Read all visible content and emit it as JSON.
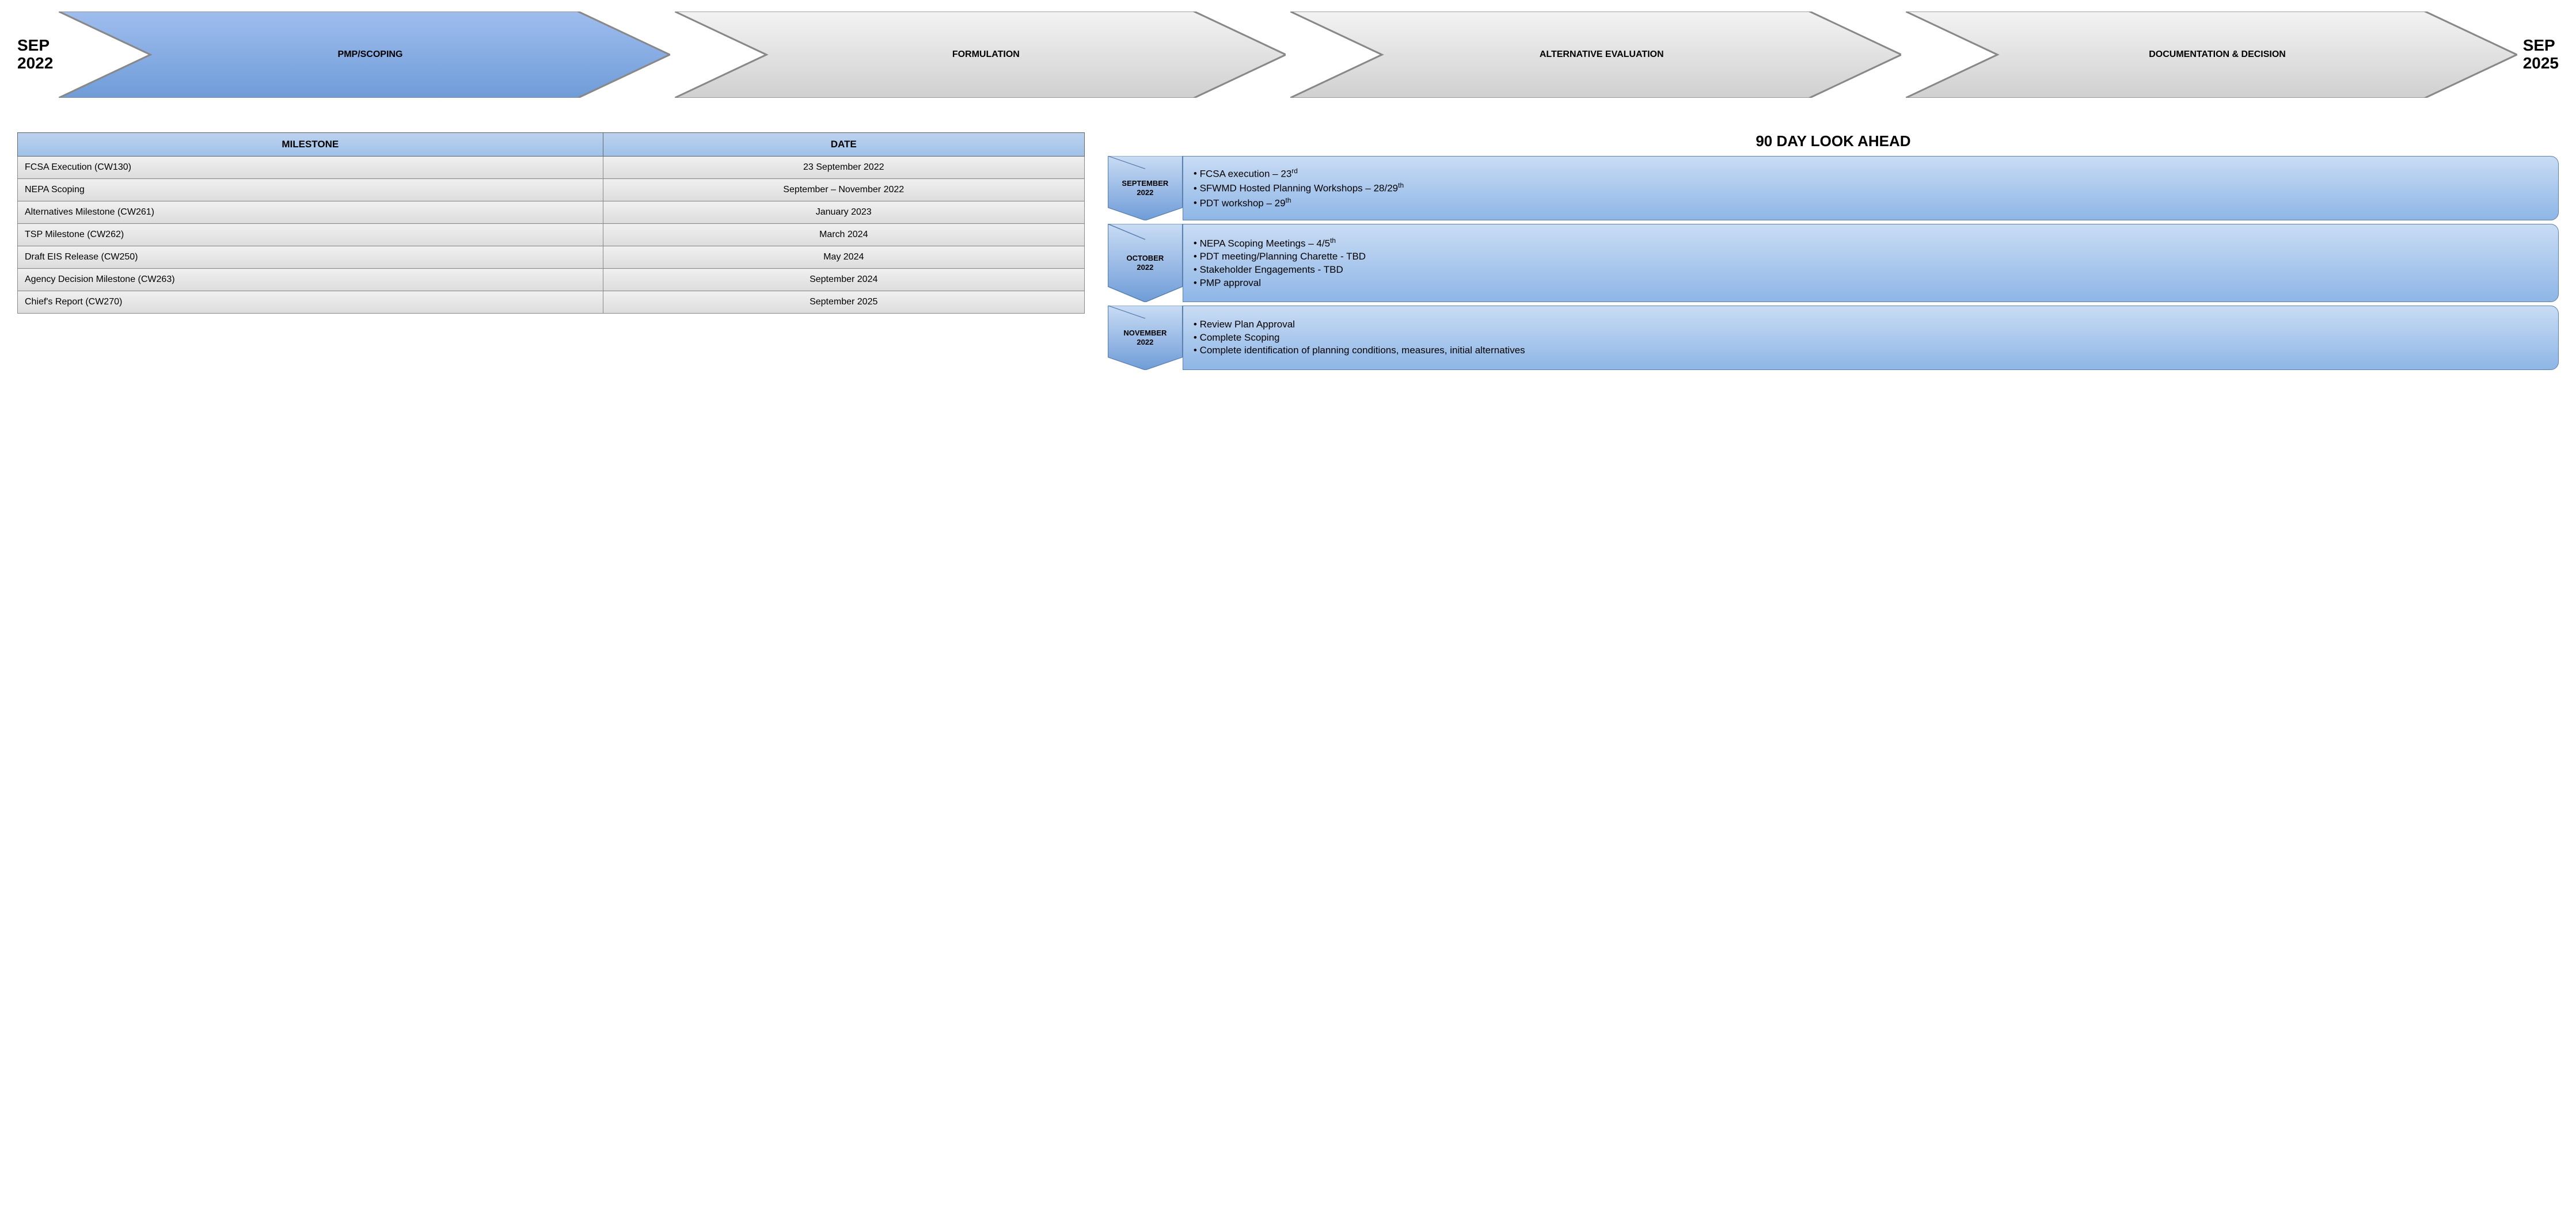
{
  "dates": {
    "start": "SEP\n2022",
    "end": "SEP\n2025"
  },
  "chevrons": {
    "active_fill_a": "#9fbdee",
    "active_fill_b": "#6f9cd8",
    "inactive_fill_a": "#f3f3f3",
    "inactive_fill_b": "#d0d0d0",
    "stroke": "#888888",
    "items": [
      {
        "label": "PMP/SCOPING",
        "active": true
      },
      {
        "label": "FORMULATION",
        "active": false
      },
      {
        "label": "ALTERNATIVE EVALUATION",
        "active": false
      },
      {
        "label": "DOCUMENTATION & DECISION",
        "active": false
      }
    ]
  },
  "table": {
    "headers": [
      "MILESTONE",
      "DATE"
    ],
    "rows": [
      [
        "FCSA Execution (CW130)",
        "23 September 2022"
      ],
      [
        "NEPA Scoping",
        "September – November 2022"
      ],
      [
        "Alternatives Milestone (CW261)",
        "January 2023"
      ],
      [
        "TSP Milestone (CW262)",
        "March 2024"
      ],
      [
        "Draft EIS Release (CW250)",
        "May 2024"
      ],
      [
        "Agency Decision Milestone (CW263)",
        "September 2024"
      ],
      [
        "Chief's Report (CW270)",
        "September 2025"
      ]
    ]
  },
  "lookahead": {
    "title": "90 DAY LOOK AHEAD",
    "chevron_fill_a": "#c9dcf4",
    "chevron_fill_b": "#6f9cd8",
    "chevron_stroke": "#5a80b0",
    "items": [
      {
        "month": "SEPTEMBER",
        "year": "2022",
        "bullets": [
          "FCSA execution – 23<sup>rd</sup>",
          "SFWMD Hosted Planning Workshops – 28/29<sup>th</sup>",
          "PDT workshop – 29<sup>th</sup>"
        ]
      },
      {
        "month": "OCTOBER",
        "year": "2022",
        "bullets": [
          "NEPA Scoping Meetings – 4/5<sup>th</sup>",
          "PDT meeting/Planning Charette - TBD",
          "Stakeholder Engagements - TBD",
          "PMP approval"
        ]
      },
      {
        "month": "NOVEMBER",
        "year": "2022",
        "bullets": [
          "Review Plan Approval",
          "Complete Scoping",
          "Complete identification of planning conditions, measures, initial alternatives"
        ]
      }
    ]
  }
}
